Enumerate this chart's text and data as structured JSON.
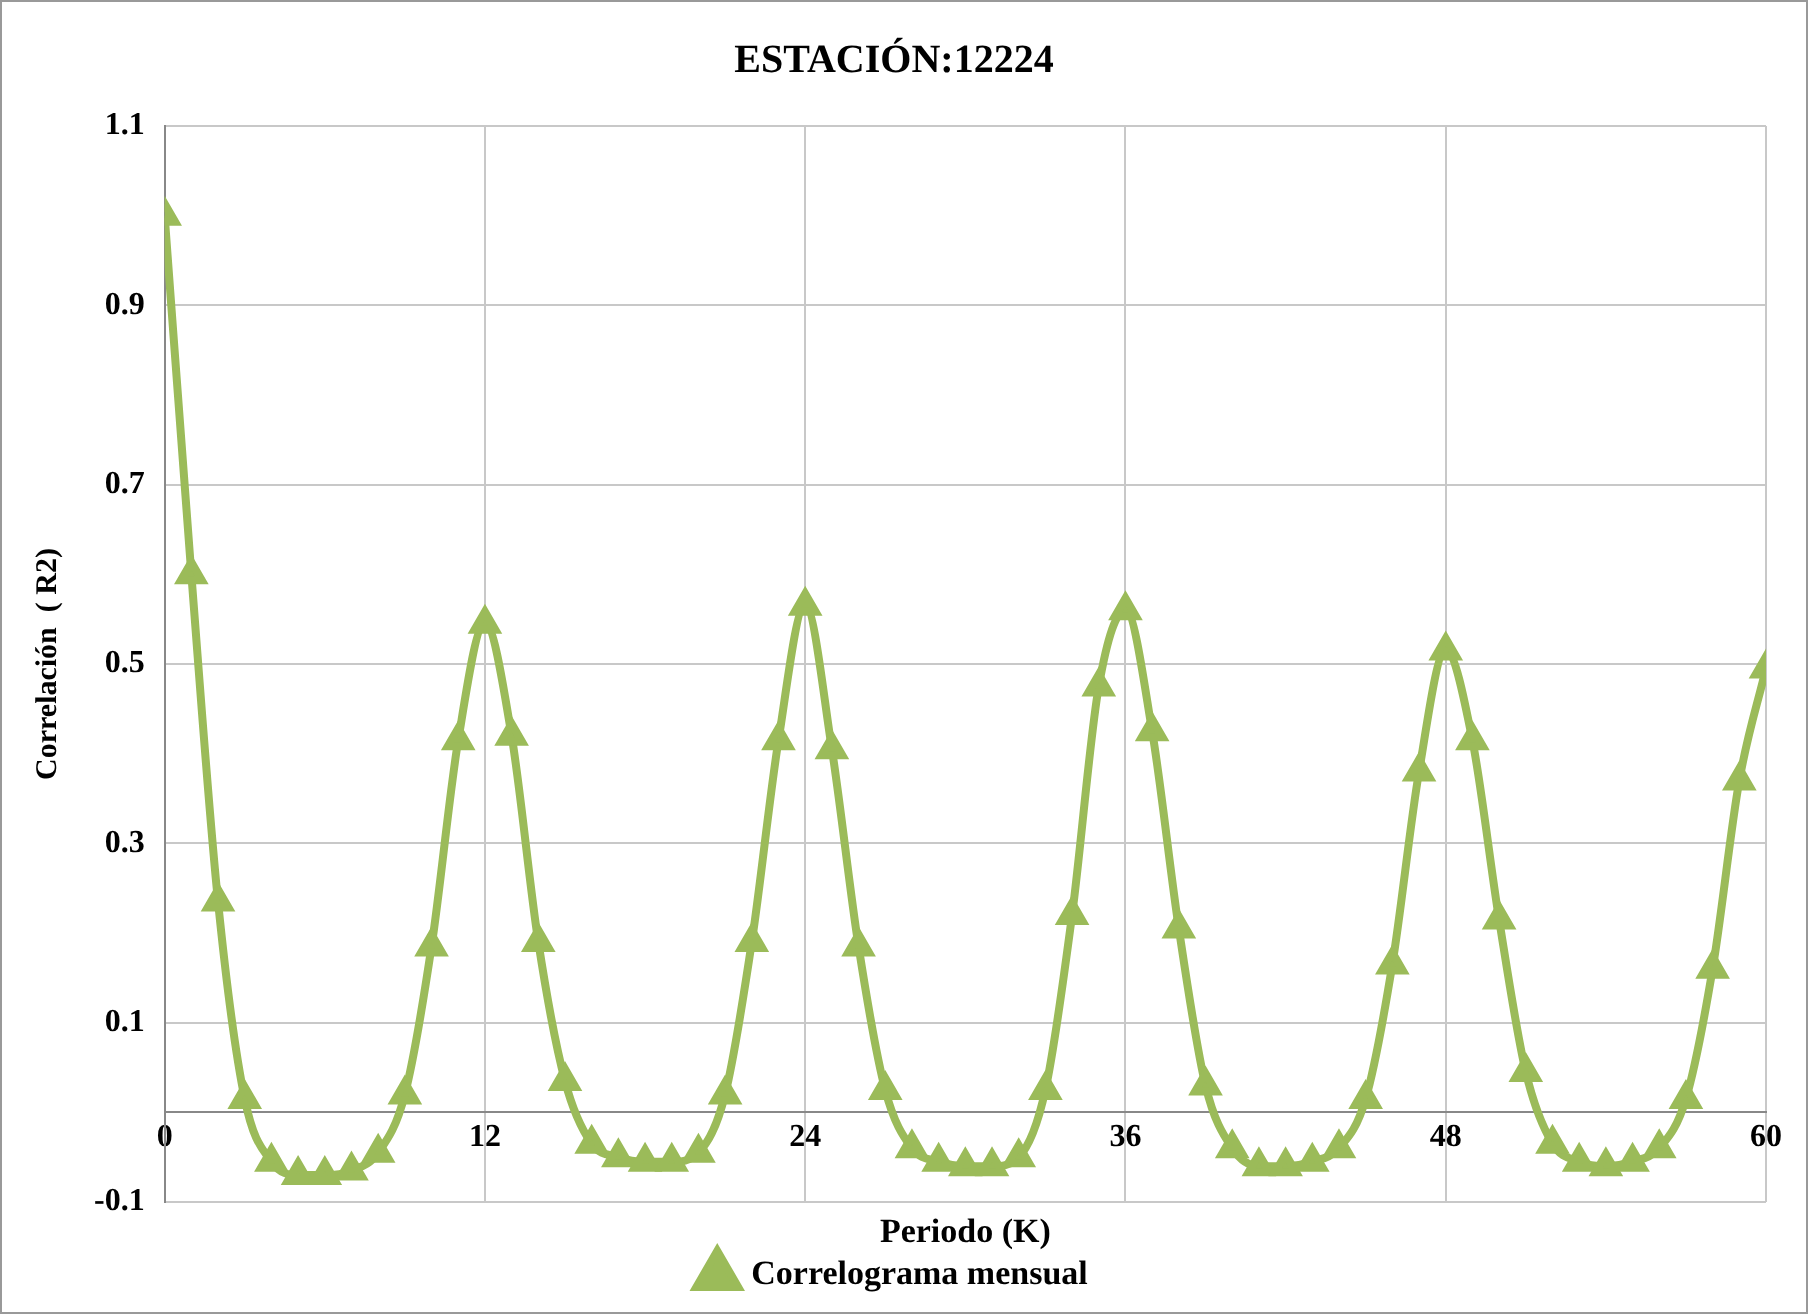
{
  "chart_data": {
    "type": "line",
    "title": "ESTACIÓN:12224",
    "xlabel": "Periodo (K)",
    "ylabel": "Correlación  ( R2)",
    "x": [
      0,
      1,
      2,
      3,
      4,
      5,
      6,
      7,
      8,
      9,
      10,
      11,
      12,
      13,
      14,
      15,
      16,
      17,
      18,
      19,
      20,
      21,
      22,
      23,
      24,
      25,
      26,
      27,
      28,
      29,
      30,
      31,
      32,
      33,
      34,
      35,
      36,
      37,
      38,
      39,
      40,
      41,
      42,
      43,
      44,
      45,
      46,
      47,
      48,
      49,
      50,
      51,
      52,
      53,
      54,
      55,
      56,
      57,
      58,
      59,
      60
    ],
    "series": [
      {
        "name": "Correlograma mensual",
        "color": "#9bbb59",
        "values": [
          1.0,
          0.6,
          0.235,
          0.015,
          -0.055,
          -0.07,
          -0.07,
          -0.065,
          -0.045,
          0.02,
          0.185,
          0.415,
          0.545,
          0.42,
          0.19,
          0.035,
          -0.035,
          -0.05,
          -0.055,
          -0.055,
          -0.045,
          0.02,
          0.19,
          0.415,
          0.565,
          0.405,
          0.185,
          0.025,
          -0.04,
          -0.055,
          -0.06,
          -0.06,
          -0.05,
          0.025,
          0.22,
          0.475,
          0.56,
          0.425,
          0.205,
          0.03,
          -0.04,
          -0.06,
          -0.06,
          -0.055,
          -0.04,
          0.015,
          0.165,
          0.38,
          0.515,
          0.415,
          0.215,
          0.045,
          -0.035,
          -0.055,
          -0.06,
          -0.055,
          -0.04,
          0.015,
          0.16,
          0.37,
          0.495
        ]
      }
    ],
    "xlim": [
      0,
      60
    ],
    "xticks": [
      0,
      12,
      24,
      36,
      48,
      60
    ],
    "ylim": [
      -0.1,
      1.1
    ],
    "yticks": [
      -0.1,
      0.1,
      0.3,
      0.5,
      0.7,
      0.9,
      1.1
    ],
    "grid": true,
    "legend": "bottom",
    "marker": "triangle",
    "line_style": "solid"
  }
}
